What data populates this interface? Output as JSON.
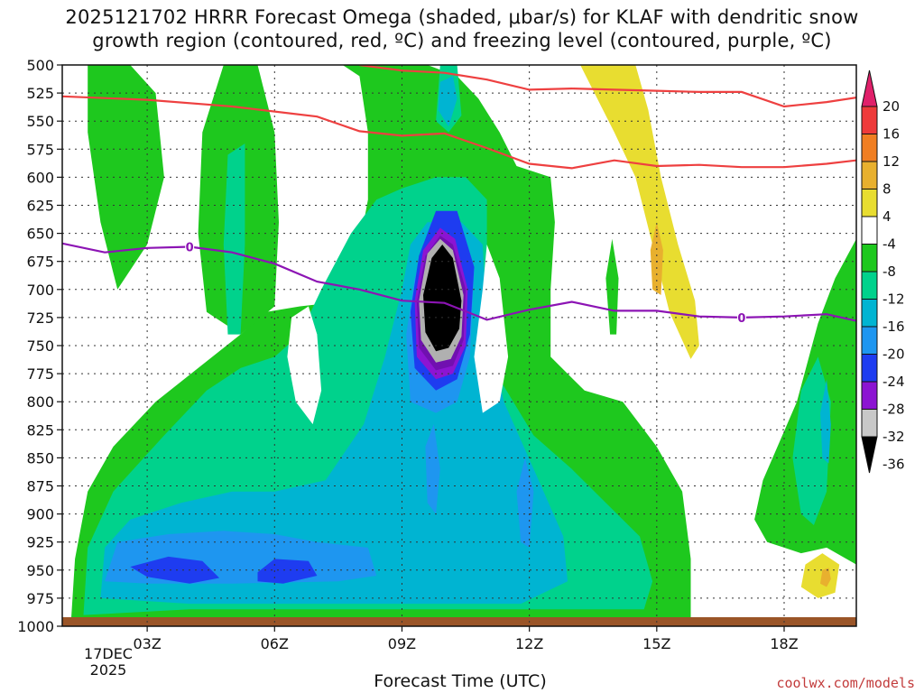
{
  "title": "2025121702 HRRR Forecast Omega (shaded, μbar/s) for KLAF with dendritic snow\ngrowth region (contoured, red, ºC) and freezing level (contoured, purple, ºC)",
  "credit": "coolwx.com/models",
  "chart_data": {
    "type": "heatmap",
    "title": "2025121702 HRRR Forecast Omega (shaded, μbar/s) for KLAF with dendritic snow growth region (contoured, red, ºC) and freezing level (contoured, purple, ºC)",
    "xlabel": "Forecast Time (UTC)",
    "x_range_hours": [
      1.0,
      19.7
    ],
    "x_ticks": [
      {
        "hour": 3,
        "label": "03Z"
      },
      {
        "hour": 6,
        "label": "06Z"
      },
      {
        "hour": 9,
        "label": "09Z"
      },
      {
        "hour": 12,
        "label": "12Z"
      },
      {
        "hour": 15,
        "label": "15Z"
      },
      {
        "hour": 18,
        "label": "18Z"
      }
    ],
    "date_label": "17DEC\n2025",
    "y_axis": {
      "unit": "hPa",
      "range": [
        500,
        1000
      ],
      "inverted": true,
      "ticks": [
        500,
        525,
        550,
        575,
        600,
        625,
        650,
        675,
        700,
        725,
        750,
        775,
        800,
        825,
        850,
        875,
        900,
        925,
        950,
        975,
        1000
      ]
    },
    "grid": true,
    "colorbar": {
      "labels": [
        "20",
        "16",
        "12",
        "8",
        "4",
        "-4",
        "-8",
        "-12",
        "-16",
        "-20",
        "-24",
        "-28",
        "-32",
        "-36"
      ],
      "colors": [
        "#e0206a",
        "#ee3a3a",
        "#f07e22",
        "#e8b02e",
        "#e8dd30",
        "#ffffff",
        "#1ec81e",
        "#00d28c",
        "#00b4d2",
        "#1e96f0",
        "#1e3cf0",
        "#8c14d2",
        "#c8c8c8",
        "#000000"
      ]
    },
    "omega_bins": [
      {
        "range": "-8 to -4",
        "color": "#1ec81e"
      },
      {
        "range": "-12 to -8",
        "color": "#00d28c"
      },
      {
        "range": "-16 to -12",
        "color": "#00b4d2"
      },
      {
        "range": "-20 to -16",
        "color": "#1e96f0"
      },
      {
        "range": "-24 to -20",
        "color": "#1e3cf0"
      },
      {
        "range": "-28 to -24",
        "color": "#8c14d2"
      },
      {
        "range": "-32 to -28",
        "color": "#7010b0"
      },
      {
        "range": "-36 to -32",
        "color": "#b0b0b0"
      },
      {
        "range": "< -36",
        "color": "#000000"
      },
      {
        "range": "4 to 8",
        "color": "#e8dd30"
      },
      {
        "range": "8 to 12",
        "color": "#e8b02e"
      }
    ],
    "contours": [
      {
        "color": "#ee4040",
        "points": [
          [
            1.0,
            528
          ],
          [
            3,
            531
          ],
          [
            5,
            537
          ],
          [
            7,
            546
          ],
          [
            8,
            559
          ],
          [
            9,
            563
          ],
          [
            10,
            561
          ],
          [
            11,
            574
          ],
          [
            12,
            588
          ],
          [
            13,
            592
          ],
          [
            14,
            585
          ],
          [
            15,
            590
          ],
          [
            16,
            589
          ],
          [
            17,
            591
          ],
          [
            18,
            591
          ],
          [
            19,
            588
          ],
          [
            19.7,
            585
          ]
        ]
      },
      {
        "color": "#ee4040",
        "points": [
          [
            8,
            500
          ],
          [
            9,
            505
          ],
          [
            10,
            507
          ],
          [
            11,
            513
          ],
          [
            12,
            522
          ],
          [
            13,
            521
          ],
          [
            14,
            522
          ],
          [
            15,
            523
          ],
          [
            16,
            524
          ],
          [
            17,
            524
          ],
          [
            18,
            537
          ],
          [
            19,
            533
          ],
          [
            19.7,
            529
          ]
        ]
      },
      {
        "color": "#8c14b4",
        "label": "0",
        "label_hour": 17,
        "points": [
          [
            1.0,
            659
          ],
          [
            2,
            667
          ],
          [
            3,
            663
          ],
          [
            4,
            662
          ],
          [
            5,
            667
          ],
          [
            6,
            677
          ],
          [
            7,
            693
          ],
          [
            8,
            700
          ],
          [
            9,
            710
          ],
          [
            10,
            712
          ],
          [
            11,
            727
          ],
          [
            12,
            718
          ],
          [
            13,
            711
          ],
          [
            14,
            719
          ],
          [
            15,
            719
          ],
          [
            16,
            724
          ],
          [
            17,
            725
          ],
          [
            18,
            724
          ],
          [
            19,
            722
          ],
          [
            19.7,
            728
          ]
        ]
      }
    ]
  }
}
